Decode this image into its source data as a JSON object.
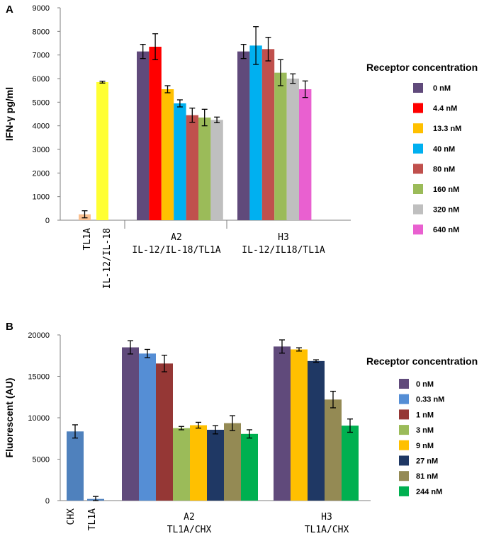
{
  "chart_data": [
    {
      "panel": "A",
      "type": "bar",
      "ylabel": "IFN-γ pg/ml",
      "ylim": [
        0,
        9000
      ],
      "yticks": [
        0,
        1000,
        2000,
        3000,
        4000,
        5000,
        6000,
        7000,
        8000,
        9000
      ],
      "legend_title": "Receptor concentration",
      "legend_position": "right",
      "series_names": [
        "0 nM",
        "4.4 nM",
        "13.3 nM",
        "40 nM",
        "80 nM",
        "160 nM",
        "320 nM",
        "640 nM"
      ],
      "series_colors": [
        "#604a7b",
        "#ff0000",
        "#ffc000",
        "#00b0f0",
        "#c0504d",
        "#9bbb59",
        "#bfbfbf",
        "#e960d0"
      ],
      "controls": [
        {
          "label": "TL1A",
          "value": 250,
          "error": 150,
          "color": "#fac090"
        },
        {
          "label": "IL-12/IL-18",
          "value": 5850,
          "error": 40,
          "color": "#ffff33"
        }
      ],
      "groups": [
        {
          "label_line1": "A2",
          "label_line2": "IL-12/IL-18/TL1A",
          "values": [
            7150,
            7350,
            5550,
            4950,
            4450,
            4350,
            4250
          ],
          "errors": [
            300,
            550,
            150,
            150,
            300,
            350,
            120
          ],
          "series_index": [
            0,
            1,
            2,
            3,
            4,
            5,
            6
          ]
        },
        {
          "label_line1": "H3",
          "label_line2": "IL-12/IL18/TL1A",
          "values": [
            7150,
            7400,
            7250,
            6250,
            6000,
            5550
          ],
          "errors": [
            300,
            800,
            500,
            550,
            200,
            350
          ],
          "series_index": [
            0,
            3,
            4,
            5,
            6,
            7
          ]
        }
      ]
    },
    {
      "panel": "B",
      "type": "bar",
      "ylabel": "Fluorescent (AU)",
      "ylim": [
        0,
        20000
      ],
      "yticks": [
        0,
        5000,
        10000,
        15000,
        20000
      ],
      "legend_title": "Receptor concentration",
      "legend_position": "right",
      "series_names": [
        "0 nM",
        "0.33 nM",
        "1 nM",
        "3 nM",
        "9 nM",
        "27 nM",
        "81 nM",
        "244 nM"
      ],
      "series_colors": [
        "#604a7b",
        "#558ed5",
        "#953735",
        "#9bbb59",
        "#ffc000",
        "#1f3864",
        "#948a54",
        "#00b050"
      ],
      "controls": [
        {
          "label": "CHX",
          "value": 8350,
          "error": 800,
          "color": "#4f81bd"
        },
        {
          "label": "TL1A",
          "value": 200,
          "error": 300,
          "color": "#4f81bd"
        }
      ],
      "groups": [
        {
          "label_line1": "A2",
          "label_line2": "TL1A/CHX",
          "values": [
            18500,
            17750,
            16550,
            8750,
            9100,
            8550,
            9350,
            8050
          ],
          "errors": [
            800,
            500,
            1000,
            200,
            350,
            500,
            900,
            500
          ],
          "series_index": [
            0,
            1,
            2,
            3,
            4,
            5,
            6,
            7
          ]
        },
        {
          "label_line1": "H3",
          "label_line2": "TL1A/CHX",
          "values": [
            18600,
            18250,
            16850,
            12200,
            9050
          ],
          "errors": [
            800,
            200,
            150,
            1000,
            800
          ],
          "series_index": [
            0,
            4,
            5,
            6,
            7
          ]
        }
      ]
    }
  ]
}
